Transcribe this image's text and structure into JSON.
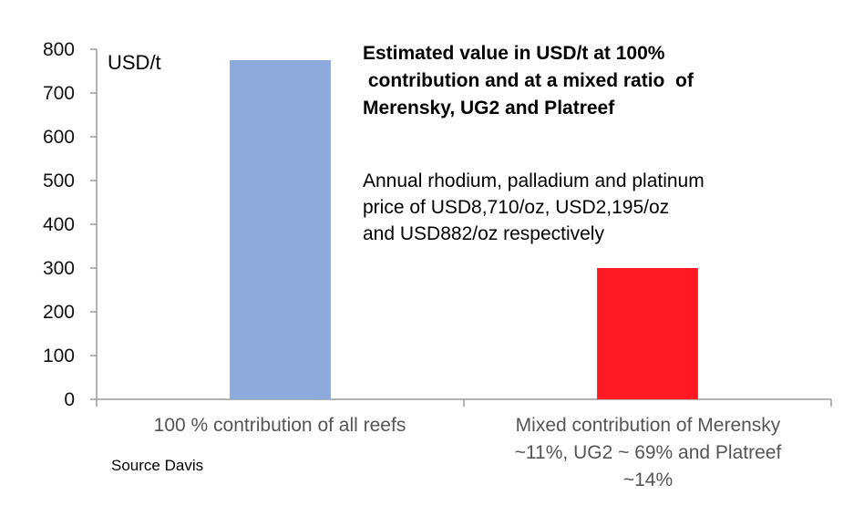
{
  "chart_data": {
    "type": "bar",
    "title": [
      "Estimated value in USD/t at 100%",
      " contribution and at a mixed ratio  of",
      "Merensky, UG2 and Platreef"
    ],
    "ylabel": "USD/t",
    "ylim": [
      0,
      800
    ],
    "yticks": [
      "0",
      "100",
      "200",
      "300",
      "400",
      "500",
      "600",
      "700",
      "800"
    ],
    "categories": [
      [
        "100 % contribution of all reefs"
      ],
      [
        "Mixed contribution of Merensky",
        "~11%, UG2 ~ 69% and Platreef",
        "~14%"
      ]
    ],
    "values": [
      775,
      300
    ],
    "bar_colors": [
      "#8ea9dc",
      "#ff1a24"
    ],
    "annotation": [
      "Annual rhodium, palladium and platinum",
      "price of USD8,710/oz, USD2,195/oz",
      "and USD882/oz respectively"
    ],
    "source": "Source Davis",
    "grid": false,
    "legend": "none"
  }
}
